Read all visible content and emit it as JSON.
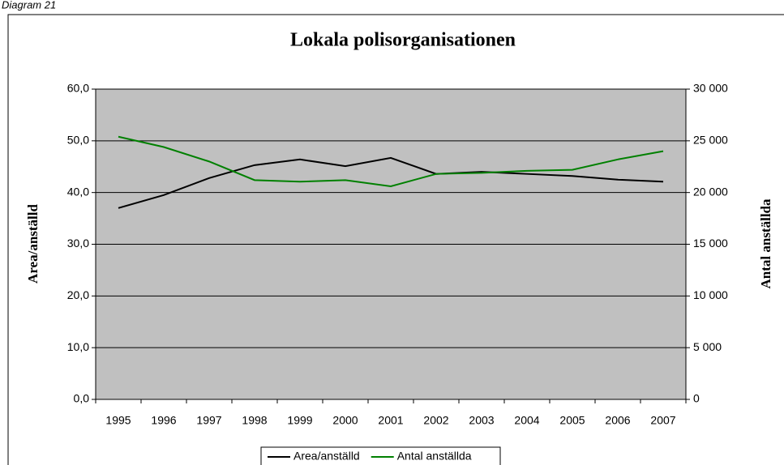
{
  "caption": "Diagram 21",
  "chart_data": {
    "type": "line",
    "title": "Lokala polisorganisationen",
    "y_label": "Area/anställd",
    "y2_label": "Antal anställda",
    "categories": [
      "1995",
      "1996",
      "1997",
      "1998",
      "1999",
      "2000",
      "2001",
      "2002",
      "2003",
      "2004",
      "2005",
      "2006",
      "2007"
    ],
    "series": [
      {
        "name": "Area/anställd",
        "color": "#000000",
        "values": [
          37.0,
          39.5,
          42.8,
          45.3,
          46.4,
          45.1,
          46.7,
          43.6,
          44.0,
          43.6,
          43.2,
          42.5,
          42.1
        ]
      },
      {
        "name": "Antal anställda",
        "color": "#008000",
        "axis": "y2",
        "values": [
          25400,
          24400,
          23000,
          21200,
          21050,
          21200,
          20600,
          21800,
          21900,
          22100,
          22200,
          23200,
          24000
        ]
      }
    ],
    "ylim": [
      0,
      60
    ],
    "yticks": [
      {
        "value": 0,
        "label": "0,0"
      },
      {
        "value": 10,
        "label": "10,0"
      },
      {
        "value": 20,
        "label": "20,0"
      },
      {
        "value": 30,
        "label": "30,0"
      },
      {
        "value": 40,
        "label": "40,0"
      },
      {
        "value": 50,
        "label": "50,0"
      },
      {
        "value": 60,
        "label": "60,0"
      }
    ],
    "y2lim": [
      0,
      30000
    ],
    "y2ticks": [
      0,
      {
        "value": 5000,
        "label": "5 000"
      },
      {
        "value": 10000,
        "label": "10 000"
      },
      {
        "value": 15000,
        "label": "15 000"
      },
      {
        "value": 20000,
        "label": "20 000"
      },
      {
        "value": 25000,
        "label": "25 000"
      },
      {
        "value": 30000,
        "label": "30 000"
      }
    ],
    "grid": true,
    "plot_background": "#c0c0c0",
    "legend": "bottom"
  }
}
